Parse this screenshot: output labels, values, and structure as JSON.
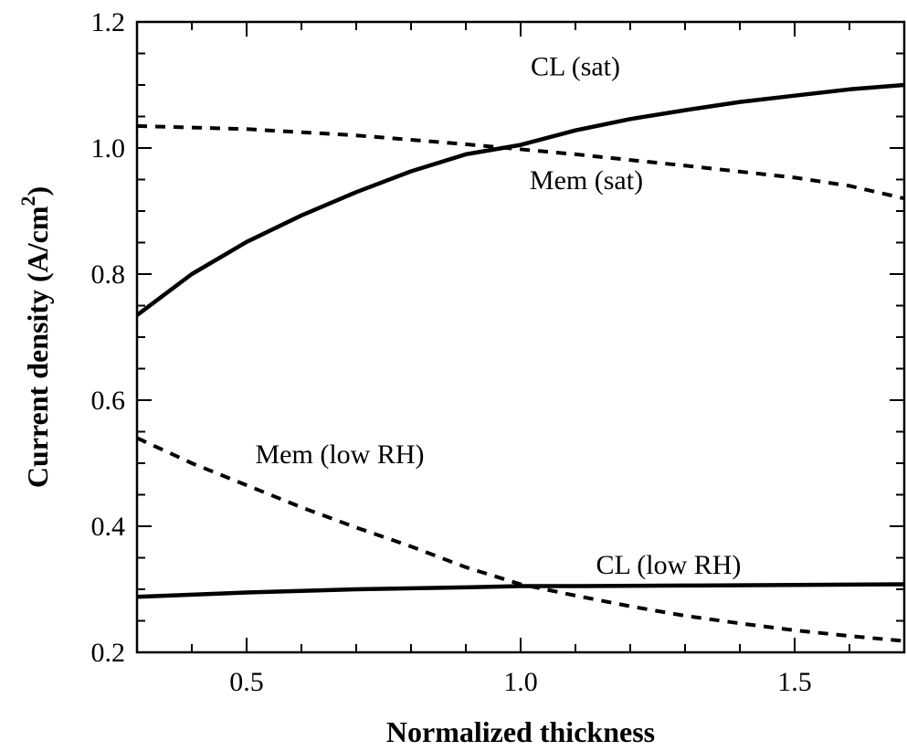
{
  "chart_data": {
    "type": "line",
    "title": "",
    "xlabel": "Normalized thickness",
    "ylabel_main": "Current density (A/cm",
    "ylabel_sup": "2",
    "ylabel_close": ")",
    "xlim": [
      0.3,
      1.7
    ],
    "ylim": [
      0.2,
      1.2
    ],
    "x_ticks": [
      {
        "value": 0.5,
        "label": "0.5"
      },
      {
        "value": 1.0,
        "label": "1.0"
      },
      {
        "value": 1.5,
        "label": "1.5"
      }
    ],
    "y_ticks": [
      {
        "value": 0.2,
        "label": "0.2"
      },
      {
        "value": 0.4,
        "label": "0.4"
      },
      {
        "value": 0.6,
        "label": "0.6"
      },
      {
        "value": 0.8,
        "label": "0.8"
      },
      {
        "value": 1.0,
        "label": "1.0"
      },
      {
        "value": 1.2,
        "label": "1.2"
      }
    ],
    "grid": false,
    "legend": "none",
    "series": [
      {
        "label": "CL (sat)",
        "style": "solid",
        "color": "#000000",
        "x": [
          0.3,
          0.4,
          0.5,
          0.6,
          0.7,
          0.8,
          0.9,
          1.0,
          1.1,
          1.2,
          1.3,
          1.4,
          1.5,
          1.6,
          1.7
        ],
        "y": [
          0.735,
          0.8,
          0.851,
          0.893,
          0.93,
          0.963,
          0.99,
          1.005,
          1.028,
          1.046,
          1.06,
          1.073,
          1.083,
          1.093,
          1.1
        ]
      },
      {
        "label": "Mem (sat)",
        "style": "dashed",
        "color": "#000000",
        "x": [
          0.3,
          0.5,
          0.7,
          0.9,
          1.1,
          1.3,
          1.5,
          1.6,
          1.7
        ],
        "y": [
          1.035,
          1.03,
          1.02,
          1.006,
          0.99,
          0.972,
          0.953,
          0.94,
          0.92
        ]
      },
      {
        "label": "Mem (low RH)",
        "style": "dashed",
        "color": "#000000",
        "x": [
          0.3,
          0.4,
          0.5,
          0.6,
          0.7,
          0.8,
          0.9,
          1.0,
          1.1,
          1.2,
          1.3,
          1.4,
          1.5,
          1.6,
          1.7
        ],
        "y": [
          0.54,
          0.5,
          0.465,
          0.43,
          0.398,
          0.368,
          0.335,
          0.308,
          0.29,
          0.273,
          0.258,
          0.246,
          0.235,
          0.226,
          0.218
        ]
      },
      {
        "label": "CL (low RH)",
        "style": "solid",
        "color": "#000000",
        "x": [
          0.3,
          0.5,
          0.7,
          0.9,
          1.0,
          1.1,
          1.3,
          1.5,
          1.7
        ],
        "y": [
          0.288,
          0.295,
          0.3,
          0.303,
          0.305,
          0.305,
          0.306,
          0.307,
          0.308
        ]
      }
    ],
    "annotations": [
      {
        "text": "CL (sat)",
        "x": 1.1,
        "y": 1.115
      },
      {
        "text": "Mem (sat)",
        "x": 1.12,
        "y": 0.935
      },
      {
        "text": "Mem (low RH)",
        "x": 0.67,
        "y": 0.5
      },
      {
        "text": "CL (low RH)",
        "x": 1.27,
        "y": 0.325
      }
    ]
  }
}
